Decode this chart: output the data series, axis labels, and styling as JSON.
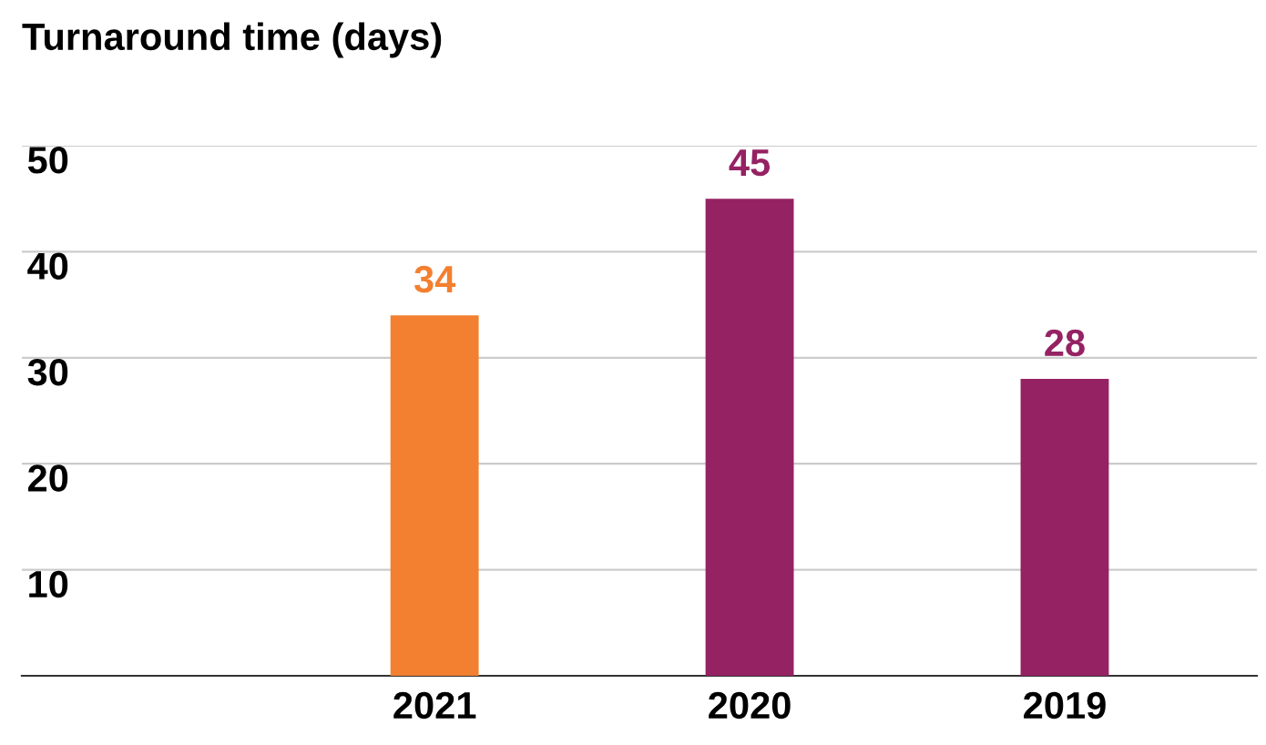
{
  "chart_data": {
    "type": "bar",
    "title": "Turnaround time (days)",
    "categories": [
      "2021",
      "2020",
      "2019"
    ],
    "values": [
      34,
      45,
      28
    ],
    "colors": [
      "#f28030",
      "#952263",
      "#952263"
    ],
    "ylim": [
      0,
      50
    ],
    "yticks": [
      10,
      20,
      30,
      40,
      50
    ],
    "grid": "y",
    "data_labels": true
  }
}
